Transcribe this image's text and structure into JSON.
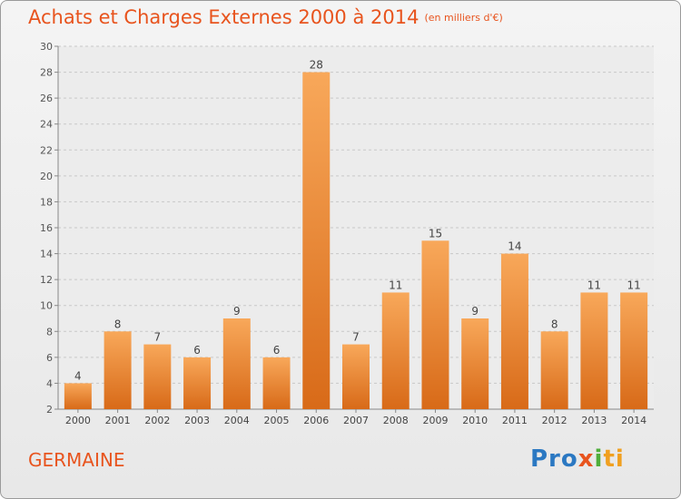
{
  "title": "Achats et Charges Externes 2000 à 2014",
  "subtitle": "(en milliers d'€)",
  "commune": "GERMAINE",
  "logo": {
    "p1": "Pro",
    "p2": "x",
    "p3": "i",
    "p4": "ti"
  },
  "colors": {
    "bar_light": "#f8a85a",
    "bar_dark": "#d86a18",
    "accent": "#e8541e",
    "grid": "#c8c8c8"
  },
  "chart_data": {
    "type": "bar",
    "categories": [
      "2000",
      "2001",
      "2002",
      "2003",
      "2004",
      "2005",
      "2006",
      "2007",
      "2008",
      "2009",
      "2010",
      "2011",
      "2012",
      "2013",
      "2014"
    ],
    "values": [
      4,
      8,
      7,
      6,
      9,
      6,
      28,
      7,
      11,
      15,
      9,
      14,
      8,
      11,
      11
    ],
    "title": "Achats et Charges Externes 2000 à 2014",
    "ylim": [
      2,
      30
    ],
    "yticks": [
      2,
      4,
      6,
      8,
      10,
      12,
      14,
      16,
      18,
      20,
      22,
      24,
      26,
      28,
      30
    ],
    "grid": "horizontal dashed",
    "data_labels": true
  }
}
